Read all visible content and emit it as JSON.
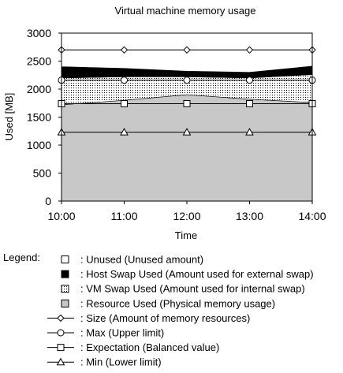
{
  "chart_data": {
    "type": "area",
    "title": "Virtual machine memory usage",
    "xlabel": "Time",
    "ylabel": "Used [MB]",
    "categories": [
      "10:00",
      "11:00",
      "12:00",
      "13:00",
      "14:00"
    ],
    "ylim": [
      0,
      3000
    ],
    "yticks": [
      0,
      500,
      1000,
      1500,
      2000,
      2500,
      3000
    ],
    "grid": false,
    "stacked_areas": [
      {
        "name": "Resource Used",
        "values": [
          1720,
          1800,
          1900,
          1820,
          1760
        ],
        "color": "#c8c8c8",
        "pattern": "solid"
      },
      {
        "name": "VM Swap Used",
        "values": [
          480,
          420,
          320,
          380,
          500
        ],
        "color": "#000000",
        "pattern": "dots"
      },
      {
        "name": "Host Swap Used",
        "values": [
          200,
          150,
          100,
          100,
          150
        ],
        "color": "#000000",
        "pattern": "solid"
      },
      {
        "name": "Unused",
        "values": [
          300,
          330,
          380,
          400,
          290
        ],
        "color": "#ffffff",
        "pattern": "solid"
      }
    ],
    "line_series": [
      {
        "name": "Size",
        "values": [
          2700,
          2700,
          2700,
          2700,
          2700
        ],
        "marker": "diamond"
      },
      {
        "name": "Max",
        "values": [
          2160,
          2160,
          2160,
          2160,
          2160
        ],
        "marker": "circle"
      },
      {
        "name": "Expectation",
        "values": [
          1740,
          1740,
          1740,
          1740,
          1740
        ],
        "marker": "square"
      },
      {
        "name": "Min",
        "values": [
          1230,
          1230,
          1230,
          1230,
          1230
        ],
        "marker": "triangle"
      }
    ],
    "legend": {
      "position": "bottom",
      "heading": "Legend:",
      "entries": [
        {
          "kind": "box",
          "fill": "#ffffff",
          "pattern": "solid",
          "text": ": Unused (Unused amount)"
        },
        {
          "kind": "box",
          "fill": "#000000",
          "pattern": "solid",
          "text": ": Host Swap Used (Amount used for external swap)"
        },
        {
          "kind": "box",
          "fill": "#000000",
          "pattern": "dots",
          "text": ": VM Swap Used (Amount used for internal swap)"
        },
        {
          "kind": "box",
          "fill": "#c8c8c8",
          "pattern": "solid",
          "text": ": Resource Used (Physical memory usage)"
        },
        {
          "kind": "line",
          "marker": "diamond",
          "text": ": Size (Amount of memory resources)"
        },
        {
          "kind": "line",
          "marker": "circle",
          "text": ": Max (Upper limit)"
        },
        {
          "kind": "line",
          "marker": "square",
          "text": ": Expectation (Balanced value)"
        },
        {
          "kind": "line",
          "marker": "triangle",
          "text": ": Min (Lower limit)"
        }
      ]
    }
  }
}
